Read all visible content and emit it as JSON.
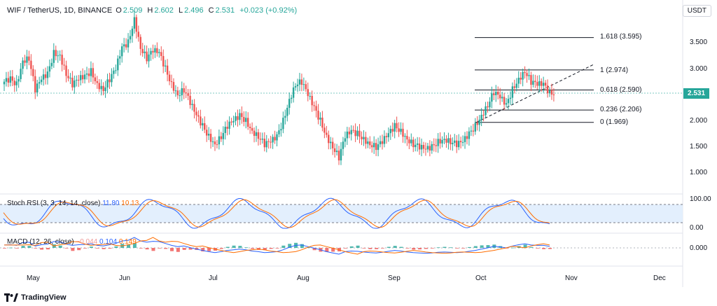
{
  "header": {
    "symbol": "WIF / TetherUS, 1D, BINANCE",
    "o_label": "O",
    "o_value": "2.509",
    "h_label": "H",
    "h_value": "2.602",
    "l_label": "L",
    "l_value": "2.496",
    "c_label": "C",
    "c_value": "2.531",
    "change": "+0.023 (+0.92%)"
  },
  "currency_button": "USDT",
  "current_price": "2.531",
  "price_axis": [
    "3.500",
    "3.000",
    "2.500",
    "2.000",
    "1.500",
    "1.000"
  ],
  "fib_levels": [
    {
      "label": "1.618 (3.595)",
      "value": 3.595
    },
    {
      "label": "1 (2.974)",
      "value": 2.974
    },
    {
      "label": "0.618 (2.590)",
      "value": 2.59
    },
    {
      "label": "0.236 (2.206)",
      "value": 2.206
    },
    {
      "label": "0 (1.969)",
      "value": 1.969
    }
  ],
  "stoch": {
    "title": "Stoch RSI (3, 3, 14, 14, close)",
    "k_value": "11.80",
    "d_value": "10.13",
    "axis": [
      "100.00",
      "0.00"
    ],
    "k_color": "#2962ff",
    "d_color": "#ff6d00"
  },
  "macd": {
    "title": "MACD (12, 26, close)",
    "hist_value": "−0.044",
    "macd_value": "0.104",
    "signal_value": "0.149",
    "axis": [
      "0.000"
    ]
  },
  "time_axis": [
    "May",
    "Jun",
    "Jul",
    "Aug",
    "Sep",
    "Oct",
    "Nov",
    "Dec"
  ],
  "brand": "TradingView",
  "colors": {
    "up": "#26a69a",
    "down": "#ef5350",
    "text": "#131722",
    "muted": "#787b86"
  },
  "chart_data": {
    "type": "candlestick",
    "x_unit": "day",
    "close_series_approx": [
      2.75,
      2.8,
      2.7,
      3.15,
      3.2,
      2.6,
      2.8,
      2.9,
      3.3,
      3.25,
      2.9,
      2.7,
      2.8,
      2.85,
      2.95,
      2.7,
      2.6,
      2.8,
      3.0,
      3.4,
      3.5,
      3.95,
      3.4,
      3.2,
      3.35,
      3.3,
      3.0,
      2.7,
      2.5,
      2.6,
      2.35,
      2.1,
      1.9,
      1.7,
      1.55,
      1.7,
      1.9,
      2.0,
      2.1,
      2.0,
      1.8,
      1.7,
      1.55,
      1.6,
      1.7,
      2.0,
      2.4,
      2.7,
      2.75,
      2.5,
      2.25,
      2.0,
      1.7,
      1.5,
      1.3,
      1.7,
      1.8,
      1.75,
      1.65,
      1.55,
      1.5,
      1.6,
      1.75,
      1.9,
      1.8,
      1.65,
      1.55,
      1.5,
      1.45,
      1.5,
      1.6,
      1.65,
      1.6,
      1.55,
      1.6,
      1.75,
      1.9,
      2.1,
      2.3,
      2.55,
      2.45,
      2.3,
      2.6,
      2.8,
      2.95,
      2.75,
      2.7,
      2.7,
      2.531
    ],
    "ylim": [
      0.8,
      4.1
    ]
  }
}
